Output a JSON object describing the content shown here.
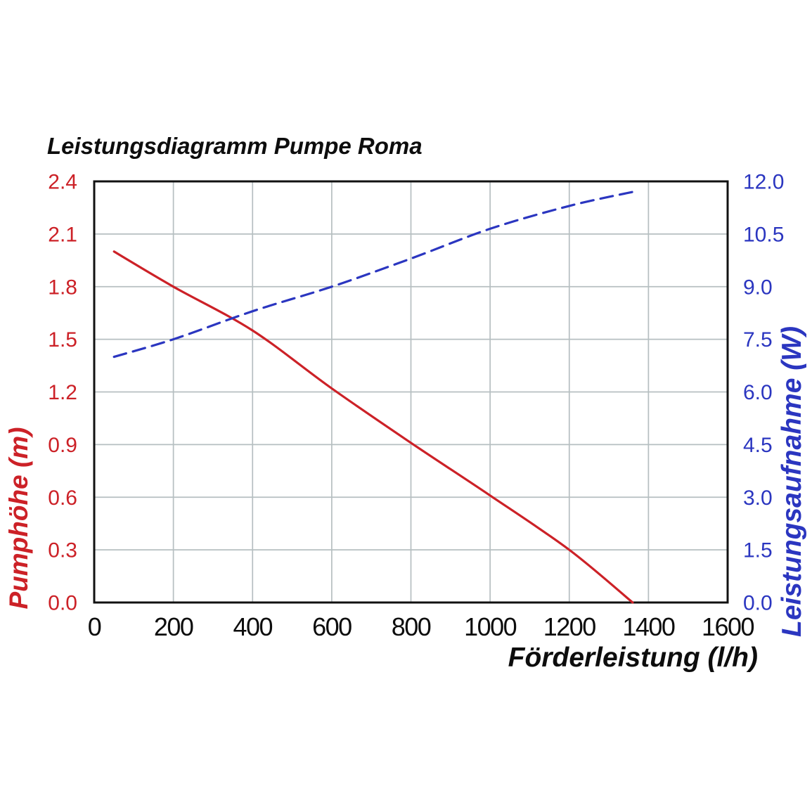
{
  "title": "Leistungsdiagramm Pumpe Roma",
  "x_axis": {
    "label": "Förderleistung (l/h)",
    "min": 0,
    "max": 1600,
    "tick_step": 200,
    "ticks": [
      "0",
      "200",
      "400",
      "600",
      "800",
      "1000",
      "1200",
      "1400",
      "1600"
    ]
  },
  "left_axis": {
    "label": "Pumphöhe (m)",
    "min": 0.0,
    "max": 2.4,
    "tick_step": 0.3,
    "ticks": [
      "0.0",
      "0.3",
      "0.6",
      "0.9",
      "1.2",
      "1.5",
      "1.8",
      "2.1",
      "2.4"
    ],
    "color": "#cc2127"
  },
  "right_axis": {
    "label": "Leistungsaufnahme (W)",
    "min": 0.0,
    "max": 12.0,
    "tick_step": 1.5,
    "ticks": [
      "0.0",
      "1.5",
      "3.0",
      "4.5",
      "6.0",
      "7.5",
      "9.0",
      "10.5",
      "12.0"
    ],
    "color": "#2b36c0"
  },
  "colors": {
    "pump_curve": "#cc2127",
    "power_curve": "#2b36c0",
    "grid": "#b6bfc1",
    "border": "#111111",
    "plot_background": "#ffffff",
    "text": "#0d0d0d"
  },
  "chart_data": {
    "type": "line",
    "title": "Leistungsdiagramm Pumpe Roma",
    "xlabel": "Förderleistung (l/h)",
    "x_range": [
      0,
      1600
    ],
    "grid": true,
    "legend_position": "none",
    "series": [
      {
        "name": "Pumphöhe",
        "unit": "m",
        "axis": "left",
        "axis_label": "Pumphöhe (m)",
        "y_range": [
          0,
          2.4
        ],
        "color": "#cc2127",
        "line_style": "solid",
        "points": [
          [
            50,
            2.0
          ],
          [
            200,
            1.8
          ],
          [
            400,
            1.55
          ],
          [
            600,
            1.22
          ],
          [
            800,
            0.91
          ],
          [
            1000,
            0.61
          ],
          [
            1200,
            0.3
          ],
          [
            1360,
            0.0
          ]
        ]
      },
      {
        "name": "Leistungsaufnahme",
        "unit": "W",
        "axis": "right",
        "axis_label": "Leistungsaufnahme (W)",
        "y_range": [
          0,
          12
        ],
        "color": "#2b36c0",
        "line_style": "dashed",
        "points": [
          [
            50,
            7.0
          ],
          [
            200,
            7.5
          ],
          [
            400,
            8.3
          ],
          [
            600,
            9.0
          ],
          [
            800,
            9.8
          ],
          [
            1000,
            10.65
          ],
          [
            1200,
            11.3
          ],
          [
            1360,
            11.7
          ]
        ]
      }
    ]
  }
}
